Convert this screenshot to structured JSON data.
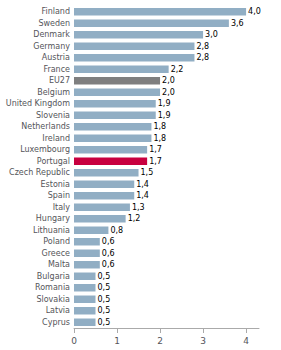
{
  "chart_data": {
    "type": "bar",
    "orientation": "horizontal",
    "categories": [
      "Finland",
      "Sweden",
      "Denmark",
      "Germany",
      "Austria",
      "France",
      "EU27",
      "Belgium",
      "United Kingdom",
      "Slovenia",
      "Netherlands",
      "Ireland",
      "Luxembourg",
      "Portugal",
      "Czech Republic",
      "Estonia",
      "Spain",
      "Italy",
      "Hungary",
      "Lithuania",
      "Poland",
      "Greece",
      "Malta",
      "Bulgaria",
      "Romania",
      "Slovakia",
      "Latvia",
      "Cyprus"
    ],
    "values": [
      4.0,
      3.6,
      3.0,
      2.8,
      2.8,
      2.2,
      2.0,
      2.0,
      1.9,
      1.9,
      1.8,
      1.8,
      1.7,
      1.7,
      1.5,
      1.4,
      1.4,
      1.3,
      1.2,
      0.8,
      0.6,
      0.6,
      0.6,
      0.5,
      0.5,
      0.5,
      0.5,
      0.5
    ],
    "value_labels": [
      "4,0",
      "3,6",
      "3,0",
      "2,8",
      "2,8",
      "2,2",
      "2,0",
      "2,0",
      "1,9",
      "1,9",
      "1,8",
      "1,8",
      "1,7",
      "1,7",
      "1,5",
      "1,4",
      "1,4",
      "1,3",
      "1,2",
      "0,8",
      "0,6",
      "0,6",
      "0,6",
      "0,5",
      "0,5",
      "0,5",
      "0,5",
      "0,5"
    ],
    "colors": [
      "#91aec4",
      "#91aec4",
      "#91aec4",
      "#91aec4",
      "#91aec4",
      "#91aec4",
      "#7f7f7f",
      "#91aec4",
      "#91aec4",
      "#91aec4",
      "#91aec4",
      "#91aec4",
      "#91aec4",
      "#c8003f",
      "#91aec4",
      "#91aec4",
      "#91aec4",
      "#91aec4",
      "#91aec4",
      "#91aec4",
      "#91aec4",
      "#91aec4",
      "#91aec4",
      "#91aec4",
      "#91aec4",
      "#91aec4",
      "#91aec4",
      "#91aec4"
    ],
    "xlim": [
      0,
      4.3
    ],
    "xticks": [
      0,
      1,
      2,
      3,
      4
    ],
    "grid": false,
    "data_labels": true
  }
}
